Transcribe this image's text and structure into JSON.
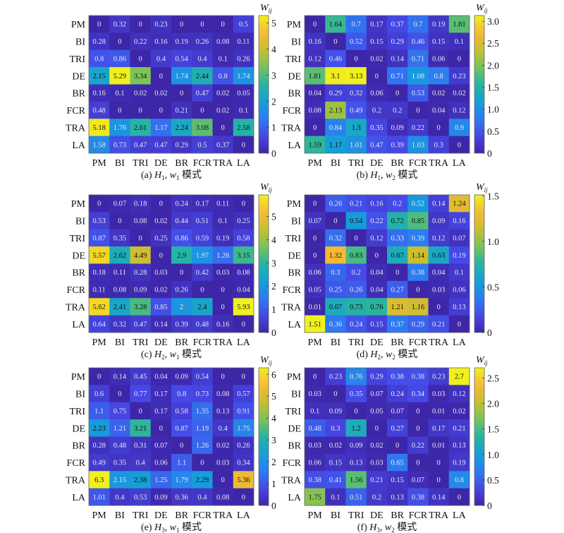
{
  "chart_data": [
    {
      "type": "heatmap",
      "caption": {
        "tag": "(a)",
        "H": "H",
        "H_sub": "1",
        "w": "w",
        "w_sub": "1",
        "suffix": "模式"
      },
      "rows": [
        "PM",
        "BI",
        "TRI",
        "DE",
        "BR",
        "FCR",
        "TRA",
        "LA"
      ],
      "cols": [
        "PM",
        "BI",
        "TRI",
        "DE",
        "BR",
        "FCR",
        "TRA",
        "LA"
      ],
      "values": [
        [
          0,
          0.32,
          0,
          0.23,
          0,
          0,
          0,
          0.5
        ],
        [
          0.28,
          0,
          0.22,
          0.16,
          0.19,
          0.26,
          0.08,
          0.11
        ],
        [
          0.8,
          0.86,
          0,
          0.4,
          0.54,
          0.4,
          0.1,
          0.26
        ],
        [
          2.15,
          5.29,
          3.34,
          0,
          1.74,
          2.44,
          0.8,
          1.74
        ],
        [
          0.16,
          0.1,
          0.02,
          0.02,
          0,
          0.47,
          0.02,
          0.05
        ],
        [
          0.48,
          0,
          0,
          0,
          0.21,
          0,
          0.02,
          0.1
        ],
        [
          5.18,
          1.76,
          2.61,
          1.17,
          2.24,
          3.08,
          0,
          2.58
        ],
        [
          1.58,
          0.73,
          0.47,
          0.47,
          0.29,
          0.5,
          0.37,
          0
        ]
      ],
      "colorbar": {
        "label": "W",
        "label_sub": "ij",
        "range": [
          0,
          5.29
        ],
        "ticks": [
          0,
          1,
          2,
          3,
          4,
          5
        ],
        "tick_labels": [
          "0",
          "1",
          "2",
          "3",
          "4",
          "5"
        ],
        "colormap": "parula"
      }
    },
    {
      "type": "heatmap",
      "caption": {
        "tag": "(b)",
        "H": "H",
        "H_sub": "1",
        "w": "w",
        "w_sub": "2",
        "suffix": "模式"
      },
      "rows": [
        "PM",
        "BI",
        "TRI",
        "DE",
        "BR",
        "FCR",
        "TRA",
        "LA"
      ],
      "cols": [
        "PM",
        "BI",
        "TRI",
        "DE",
        "BR",
        "FCR",
        "TRA",
        "LA"
      ],
      "values": [
        [
          0,
          1.64,
          0.7,
          0.17,
          0.37,
          0.7,
          0.19,
          1.81
        ],
        [
          0.16,
          0,
          0.52,
          0.15,
          0.29,
          0.46,
          0.15,
          0.1
        ],
        [
          0.12,
          0.46,
          0,
          0.02,
          0.14,
          0.71,
          0.06,
          0
        ],
        [
          1.81,
          3.1,
          3.13,
          0,
          0.71,
          1.08,
          0.8,
          0.23
        ],
        [
          0.04,
          0.29,
          0.32,
          0.06,
          0,
          0.53,
          0.02,
          0.02
        ],
        [
          0.08,
          2.13,
          0.49,
          0.2,
          0.2,
          0,
          0.04,
          0.12
        ],
        [
          0,
          0.84,
          1.3,
          0.35,
          0.09,
          0.22,
          0,
          0.9
        ],
        [
          1.59,
          1.17,
          1.01,
          0.47,
          0.39,
          1.03,
          0.3,
          0
        ]
      ],
      "colorbar": {
        "label": "W",
        "label_sub": "ij",
        "range": [
          0,
          3.13
        ],
        "ticks": [
          0,
          0.5,
          1,
          1.5,
          2,
          2.5,
          3
        ],
        "tick_labels": [
          "0",
          "0.5",
          "1.0",
          "1.5",
          "2.0",
          "2.5",
          "3.0"
        ],
        "colormap": "parula"
      }
    },
    {
      "type": "heatmap",
      "caption": {
        "tag": "(c)",
        "H": "H",
        "H_sub": "2",
        "w": "w",
        "w_sub": "1",
        "suffix": "模式"
      },
      "rows": [
        "PM",
        "BI",
        "TRI",
        "DE",
        "BR",
        "FCR",
        "TRA",
        "LA"
      ],
      "cols": [
        "PM",
        "BI",
        "TRI",
        "DE",
        "BR",
        "FCR",
        "TRA",
        "LA"
      ],
      "values": [
        [
          0,
          0.07,
          0.18,
          0,
          0.24,
          0.17,
          0.11,
          0
        ],
        [
          0.53,
          0,
          0.08,
          0.02,
          0.44,
          0.51,
          0.1,
          0.25
        ],
        [
          0.87,
          0.35,
          0,
          0.25,
          0.86,
          0.59,
          0.19,
          0.58
        ],
        [
          5.57,
          2.62,
          4.49,
          0,
          2.9,
          1.97,
          1.26,
          3.15
        ],
        [
          0.18,
          0.11,
          0.28,
          0.03,
          0,
          0.42,
          0.03,
          0.08
        ],
        [
          0.11,
          0.08,
          0.09,
          0.02,
          0.26,
          0,
          0,
          0.04
        ],
        [
          5.62,
          2.41,
          3.28,
          0.85,
          2,
          2.4,
          0,
          5.93
        ],
        [
          0.64,
          0.32,
          0.47,
          0.14,
          0.39,
          0.48,
          0.16,
          0
        ]
      ],
      "colorbar": {
        "label": "W",
        "label_sub": "ij",
        "range": [
          0,
          5.93
        ],
        "ticks": [
          0,
          1,
          2,
          3,
          4,
          5
        ],
        "tick_labels": [
          "0",
          "1",
          "2",
          "3",
          "4",
          "5"
        ],
        "colormap": "parula"
      }
    },
    {
      "type": "heatmap",
      "caption": {
        "tag": "(d)",
        "H": "H",
        "H_sub": "2",
        "w": "w",
        "w_sub": "2",
        "suffix": "模式"
      },
      "rows": [
        "PM",
        "BI",
        "TRI",
        "DE",
        "BR",
        "FCR",
        "TRA",
        "LA"
      ],
      "cols": [
        "PM",
        "BI",
        "TRI",
        "DE",
        "BR",
        "FCR",
        "TRA",
        "LA"
      ],
      "values": [
        [
          0,
          0.26,
          0.21,
          0.16,
          0.2,
          0.52,
          0.14,
          1.24
        ],
        [
          0.07,
          0,
          0.54,
          0.22,
          0.72,
          0.85,
          0.09,
          0.16
        ],
        [
          0,
          0.32,
          0,
          0.12,
          0.33,
          0.39,
          0.12,
          0.07
        ],
        [
          0,
          1.32,
          0.83,
          0,
          0.67,
          1.14,
          0.63,
          0.19
        ],
        [
          0.06,
          0.3,
          0.2,
          0.04,
          0,
          0.38,
          0.04,
          0.1
        ],
        [
          0.05,
          0.25,
          0.26,
          0.04,
          0.27,
          0,
          0.03,
          0.06
        ],
        [
          0.01,
          0.67,
          0.73,
          0.76,
          1.21,
          1.16,
          0,
          0.13
        ],
        [
          1.51,
          0.36,
          0.24,
          0.15,
          0.37,
          0.29,
          0.21,
          0
        ]
      ],
      "colorbar": {
        "label": "W",
        "label_sub": "ij",
        "range": [
          0,
          1.51
        ],
        "ticks": [
          0,
          0.5,
          1,
          1.5
        ],
        "tick_labels": [
          "0",
          "0.5",
          "1.0",
          "1.5"
        ],
        "colormap": "parula"
      }
    },
    {
      "type": "heatmap",
      "caption": {
        "tag": "(e)",
        "H": "H",
        "H_sub": "3",
        "w": "w",
        "w_sub": "1",
        "suffix": "模式"
      },
      "rows": [
        "PM",
        "BI",
        "TRI",
        "DE",
        "BR",
        "FCR",
        "TRA",
        "LA"
      ],
      "cols": [
        "PM",
        "BI",
        "TRI",
        "DE",
        "BR",
        "FCR",
        "TRA",
        "LA"
      ],
      "values": [
        [
          0,
          0.14,
          0.45,
          0.04,
          0.09,
          0.54,
          0,
          0
        ],
        [
          0.6,
          0,
          0.77,
          0.17,
          0.8,
          0.73,
          0.08,
          0.57
        ],
        [
          1.1,
          0.75,
          0,
          0.17,
          0.58,
          1.35,
          0.13,
          0.91
        ],
        [
          2.23,
          1.21,
          3.21,
          0,
          0.87,
          1.19,
          0.4,
          1.75
        ],
        [
          0.28,
          0.48,
          0.31,
          0.07,
          0,
          1.26,
          0.02,
          0.26
        ],
        [
          0.49,
          0.35,
          0.4,
          0.06,
          1.1,
          0,
          0.03,
          0.34
        ],
        [
          6.3,
          2.15,
          2.38,
          1.25,
          1.79,
          2.29,
          0,
          5.36
        ],
        [
          1.01,
          0.4,
          0.53,
          0.09,
          0.36,
          0.4,
          0.08,
          0
        ]
      ],
      "colorbar": {
        "label": "W",
        "label_sub": "ij",
        "range": [
          0,
          6.3
        ],
        "ticks": [
          0,
          1,
          2,
          3,
          4,
          5,
          6
        ],
        "tick_labels": [
          "0",
          "1",
          "2",
          "3",
          "4",
          "5",
          "6"
        ],
        "colormap": "parula"
      }
    },
    {
      "type": "heatmap",
      "caption": {
        "tag": "(f)",
        "H": "H",
        "H_sub": "3",
        "w": "w",
        "w_sub": "2",
        "suffix": "模式"
      },
      "rows": [
        "PM",
        "BI",
        "TRI",
        "DE",
        "BR",
        "FCR",
        "TRA",
        "LA"
      ],
      "cols": [
        "PM",
        "BI",
        "TRI",
        "DE",
        "BR",
        "FCR",
        "TRA",
        "LA"
      ],
      "values": [
        [
          0,
          0.23,
          0.76,
          0.29,
          0.38,
          0.38,
          0.23,
          2.7
        ],
        [
          0.03,
          0,
          0.35,
          0.07,
          0.24,
          0.34,
          0.03,
          0.12
        ],
        [
          0.1,
          0.09,
          0,
          0.05,
          0.07,
          0,
          0.01,
          0.02
        ],
        [
          0.48,
          0.3,
          1.2,
          0,
          0.27,
          0,
          0.17,
          0.21
        ],
        [
          0.03,
          0.02,
          0.09,
          0.02,
          0,
          0.22,
          0.01,
          0.13
        ],
        [
          0.06,
          0.15,
          0.13,
          0.03,
          0.65,
          0,
          0,
          0.19
        ],
        [
          0.38,
          0.41,
          1.56,
          0.21,
          0.15,
          0.07,
          0,
          0.8
        ],
        [
          1.75,
          0.1,
          0.51,
          0.2,
          0.13,
          0.38,
          0.14,
          0
        ]
      ],
      "colorbar": {
        "label": "W",
        "label_sub": "ij",
        "range": [
          0,
          2.7
        ],
        "ticks": [
          0,
          0.5,
          1,
          1.5,
          2,
          2.5
        ],
        "tick_labels": [
          "0",
          "0.5",
          "1.0",
          "1.5",
          "2.0",
          "2.5"
        ],
        "colormap": "parula"
      }
    }
  ]
}
